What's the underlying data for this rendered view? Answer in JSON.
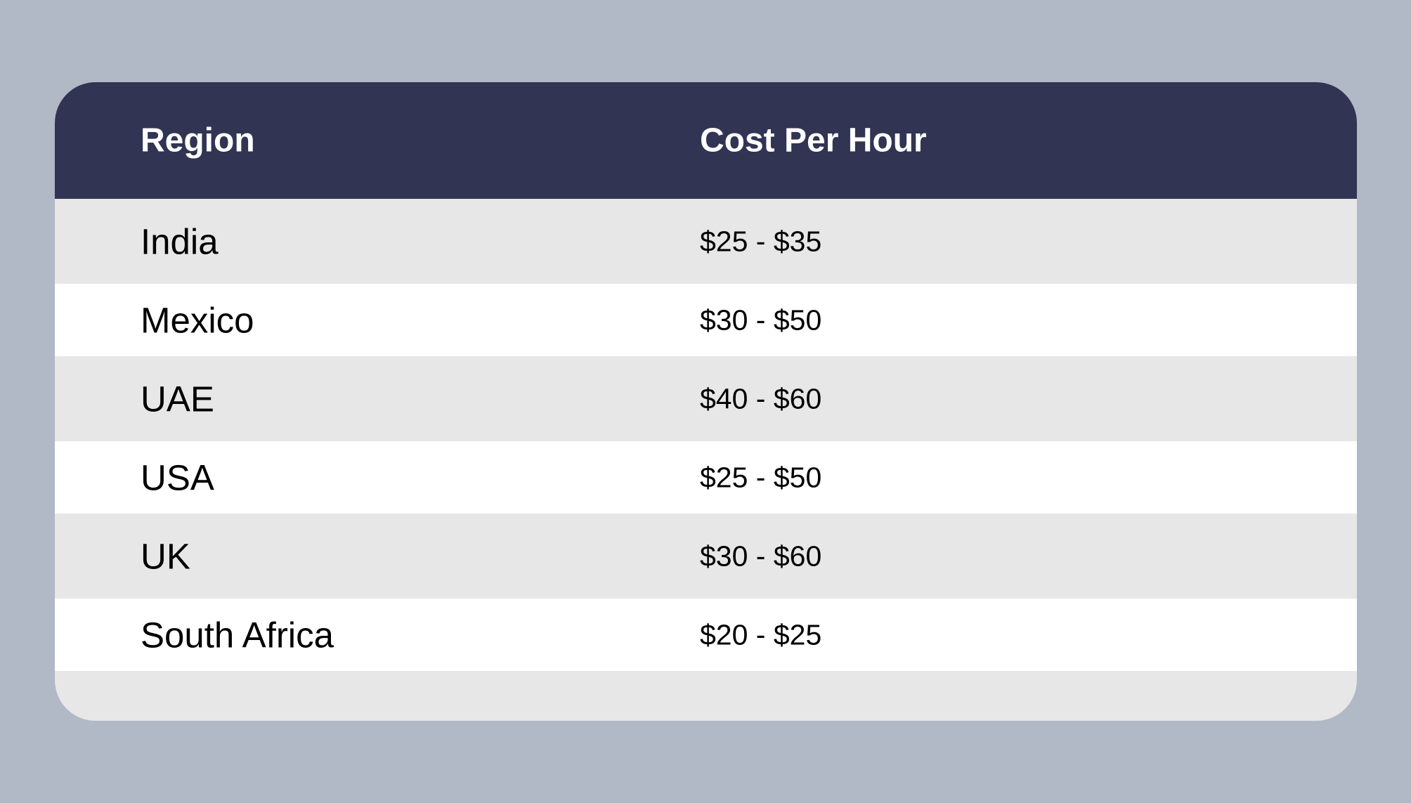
{
  "table": {
    "headers": {
      "region": "Region",
      "cost": "Cost Per Hour"
    },
    "rows": [
      {
        "region": "India",
        "cost": "$25 - $35"
      },
      {
        "region": "Mexico",
        "cost": "$30 - $50"
      },
      {
        "region": "UAE",
        "cost": "$40 - $60"
      },
      {
        "region": "USA",
        "cost": "$25 - $50"
      },
      {
        "region": "UK",
        "cost": "$30 - $60"
      },
      {
        "region": "South Africa",
        "cost": "$20 - $25"
      }
    ]
  },
  "colors": {
    "background": "#b1b8c6",
    "header": "#323453",
    "row_shaded": "#e7e7e7",
    "row_plain": "#ffffff"
  }
}
